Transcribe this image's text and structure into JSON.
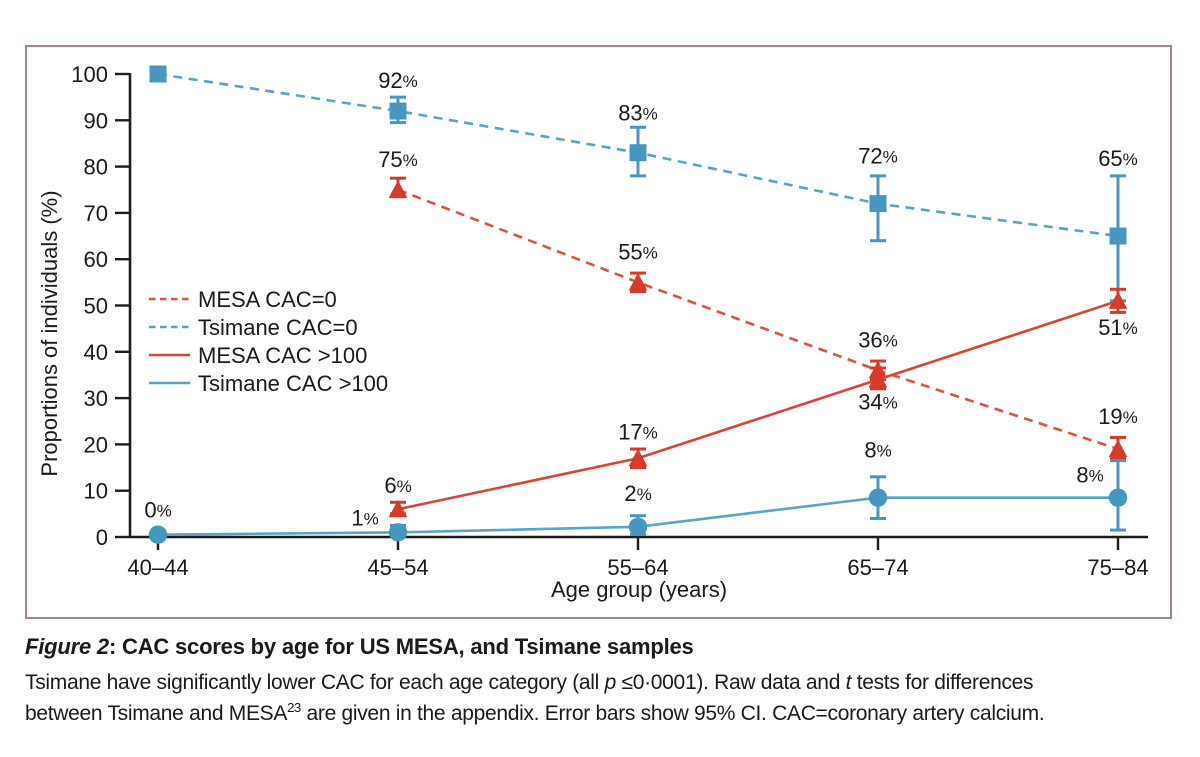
{
  "figure": {
    "panel_border_color": "#b27a93",
    "caption_title_segments": [
      {
        "text": "Figure 2",
        "style": "bold-italic"
      },
      {
        "text": ": CAC scores by age for US MESA, and Tsimane samples",
        "style": "bold"
      }
    ],
    "caption_body_lines": [
      [
        {
          "text": "Tsimane have significantly lower CAC for each age category (all "
        },
        {
          "text": "p",
          "style": "italic"
        },
        {
          "text": " ≤0·0001). Raw data and "
        },
        {
          "text": "t",
          "style": "italic"
        },
        {
          "text": " tests for differences"
        }
      ],
      [
        {
          "text": "between Tsimane and MESA"
        },
        {
          "text": "23",
          "style": "superscript"
        },
        {
          "text": " are given in the appendix. Error bars show 95% CI. CAC=coronary artery calcium."
        }
      ]
    ]
  },
  "chart_data": {
    "type": "line",
    "title": "",
    "xlabel": "Age group (years)",
    "ylabel": "Proportions of individuals (%)",
    "ylim": [
      0,
      100
    ],
    "ytick_step": 10,
    "grid": false,
    "legend_position": "inside-middle-left",
    "axis_color": "#1c1c1c",
    "label_color": "#1a1a1a",
    "categories": [
      "40–44",
      "45–54",
      "55–64",
      "65–74",
      "75–84"
    ],
    "error_bars_note": "95% CI",
    "series": [
      {
        "name": "MESA CAC=0",
        "line_style": "dashed",
        "marker": "triangle",
        "line_color": "#e0523f",
        "marker_color": "#d63b2a",
        "values": [
          null,
          75,
          55,
          36,
          19
        ],
        "ci_low": [
          null,
          73.5,
          53,
          34,
          17
        ],
        "ci_high": [
          null,
          77.5,
          57,
          38,
          21.5
        ],
        "labels": [
          null,
          "75%",
          "55%",
          "36%",
          "19%"
        ],
        "label_dx": [
          0,
          0,
          0,
          0,
          0
        ],
        "label_dy": [
          0,
          -23,
          -23,
          -23,
          -25
        ]
      },
      {
        "name": "Tsimane CAC=0",
        "line_style": "dashed",
        "marker": "square",
        "line_color": "#57a4c8",
        "marker_color": "#4697c0",
        "values": [
          100,
          92,
          83,
          72,
          65
        ],
        "ci_low": [
          null,
          89.5,
          78,
          64,
          51
        ],
        "ci_high": [
          null,
          95,
          88.5,
          78,
          78
        ],
        "labels": [
          null,
          "92%",
          "83%",
          "72%",
          "65%"
        ],
        "label_dx": [
          0,
          0,
          0,
          0,
          0
        ],
        "label_dy": [
          0,
          -23,
          -32,
          -40,
          -70
        ]
      },
      {
        "name": "MESA CAC >100",
        "line_style": "solid",
        "marker": "triangle",
        "line_color": "#da4534",
        "marker_color": "#d63b2a",
        "values": [
          null,
          6,
          17,
          34,
          51
        ],
        "ci_low": [
          null,
          5,
          15,
          32,
          48.5
        ],
        "ci_high": [
          null,
          7.5,
          19,
          36.5,
          53.5
        ],
        "labels": [
          null,
          "6%",
          "17%",
          "34%",
          "51%"
        ],
        "label_dx": [
          0,
          0,
          0,
          0,
          0
        ],
        "label_dy": [
          0,
          -16,
          -19,
          30,
          34
        ]
      },
      {
        "name": "Tsimane CAC >100",
        "line_style": "solid",
        "marker": "circle",
        "line_color": "#57a4c8",
        "marker_color": "#4697c0",
        "values": [
          0.5,
          1,
          2.2,
          8.5,
          8.5
        ],
        "ci_low": [
          null,
          0.3,
          0.6,
          4,
          1.5
        ],
        "ci_high": [
          null,
          2.5,
          4.6,
          13,
          16.5
        ],
        "labels": [
          "0%",
          "1%",
          "2%",
          "8%",
          "8%"
        ],
        "label_dx": [
          0,
          -33,
          0,
          0,
          -28
        ],
        "label_dy": [
          -17,
          -7,
          -26,
          -40,
          -15
        ]
      }
    ]
  }
}
